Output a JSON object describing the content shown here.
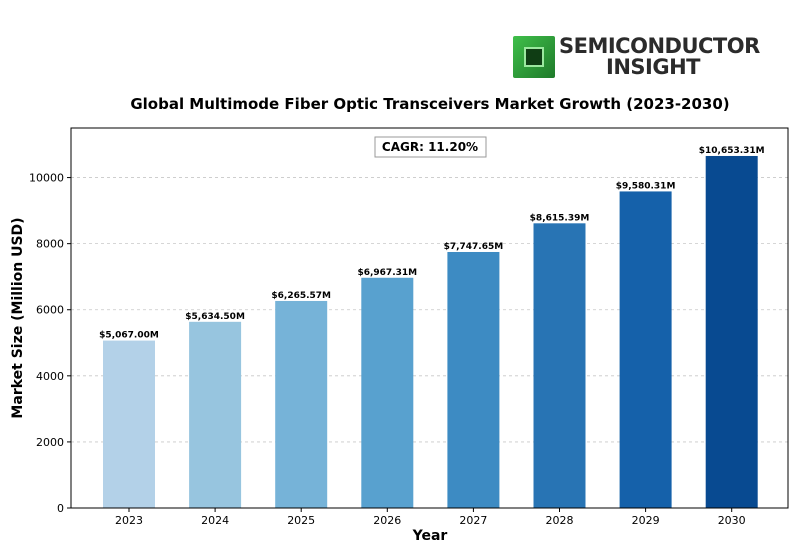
{
  "logo": {
    "line1": "SEMICONDUCTOR",
    "line2": "INSIGHT",
    "chip_color": "#2e9e3a"
  },
  "chart_data": {
    "type": "bar",
    "title": "Global Multimode Fiber Optic Transceivers Market Growth (2023-2030)",
    "xlabel": "Year",
    "ylabel": "Market Size (Million USD)",
    "categories": [
      "2023",
      "2024",
      "2025",
      "2026",
      "2027",
      "2028",
      "2029",
      "2030"
    ],
    "values": [
      5067.0,
      5634.5,
      6265.57,
      6967.31,
      7747.65,
      8615.39,
      9580.31,
      10653.31
    ],
    "data_labels": [
      "$5,067.00M",
      "$5,634.50M",
      "$6,265.57M",
      "$6,967.31M",
      "$7,747.65M",
      "$8,615.39M",
      "$9,580.31M",
      "$10,653.31M"
    ],
    "colors": [
      "#b3d1e8",
      "#97c5df",
      "#76b3d8",
      "#58a1cf",
      "#3d8bc3",
      "#2874b4",
      "#1561aa",
      "#084a91"
    ],
    "ylim": [
      0,
      11500
    ],
    "yticks": [
      0,
      2000,
      4000,
      6000,
      8000,
      10000
    ],
    "grid": true,
    "annotation": "CAGR: 11.20%"
  }
}
